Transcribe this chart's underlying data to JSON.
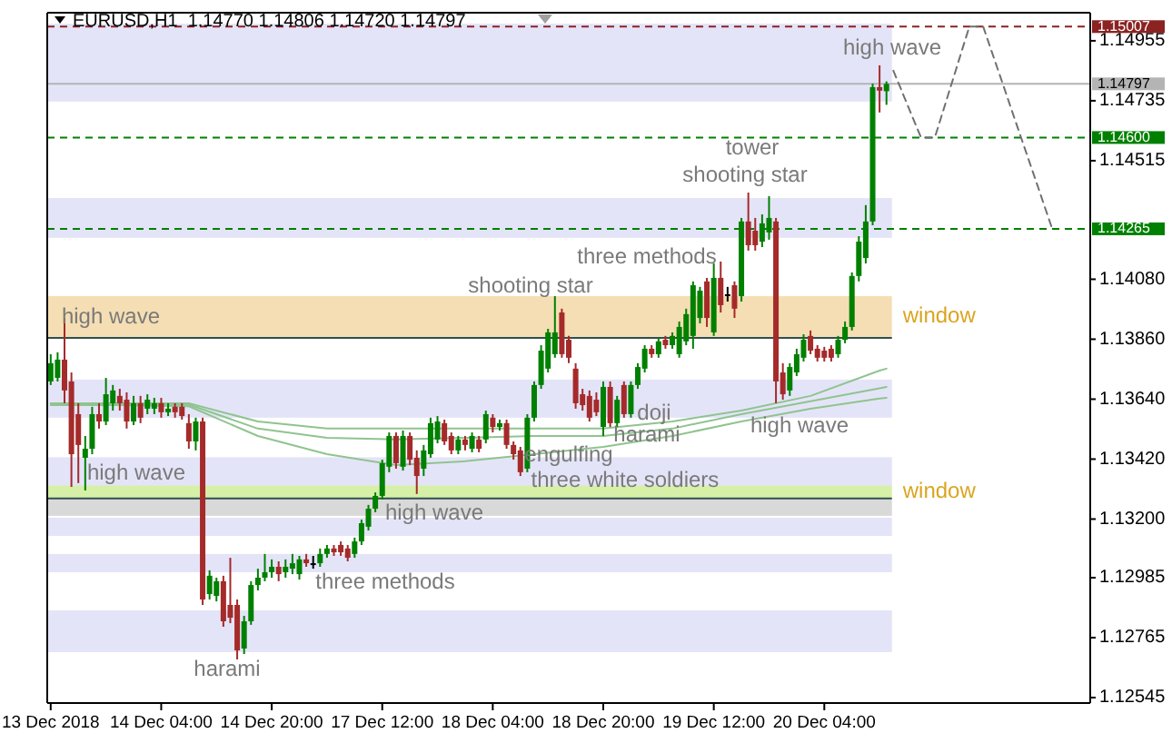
{
  "chart_data": {
    "type": "candlestick",
    "title": "EURUSD,H1  1.14770 1.14806 1.14720 1.14797",
    "categories": [
      "13 Dec 2018",
      null,
      null,
      null,
      null,
      null,
      null,
      null,
      null,
      null,
      null,
      null,
      null,
      null,
      null,
      null,
      "14 Dec 04:00",
      null,
      null,
      null,
      null,
      null,
      null,
      null,
      null,
      null,
      null,
      null,
      null,
      null,
      null,
      null,
      "14 Dec 20:00",
      null,
      null,
      null,
      null,
      null,
      null,
      null,
      null,
      null,
      null,
      null,
      null,
      null,
      null,
      null,
      "17 Dec 12:00",
      null,
      null,
      null,
      null,
      null,
      null,
      null,
      null,
      null,
      null,
      null,
      null,
      null,
      null,
      null,
      "18 Dec 04:00",
      null,
      null,
      null,
      null,
      null,
      null,
      null,
      null,
      null,
      null,
      null,
      null,
      null,
      null,
      null,
      "18 Dec 20:00",
      null,
      null,
      null,
      null,
      null,
      null,
      null,
      null,
      null,
      null,
      null,
      null,
      null,
      null,
      null,
      "19 Dec 12:00",
      null,
      null,
      null,
      null,
      null,
      null,
      null,
      null,
      null,
      null,
      null,
      null,
      null,
      null,
      null,
      "20 Dec 04:00",
      null,
      null,
      null,
      null,
      null,
      null,
      null,
      null,
      null,
      null,
      null,
      null,
      null,
      null,
      null,
      null,
      null,
      null,
      null,
      null,
      null,
      null,
      null,
      null,
      null,
      null,
      null,
      null,
      null,
      null,
      null,
      null,
      null,
      null,
      null,
      null,
      null,
      null
    ],
    "ohlc": [
      [
        1.13705,
        1.13805,
        1.13692,
        1.13772
      ],
      [
        1.13718,
        1.13812,
        1.13705,
        1.13785
      ],
      [
        1.13785,
        1.13938,
        1.13625,
        1.13672
      ],
      [
        1.13705,
        1.13738,
        1.13318,
        1.13438
      ],
      [
        1.13585,
        1.13625,
        1.13332,
        1.13472
      ],
      [
        1.13425,
        1.13505,
        1.13305,
        1.13458
      ],
      [
        1.13458,
        1.13612,
        1.13438,
        1.13585
      ],
      [
        1.13585,
        1.13625,
        1.13532,
        1.13558
      ],
      [
        1.13558,
        1.13718,
        1.13545,
        1.13658
      ],
      [
        1.13625,
        1.13692,
        1.13598,
        1.13672
      ],
      [
        1.13652,
        1.13678,
        1.13598,
        1.13625
      ],
      [
        1.13638,
        1.13665,
        1.13532,
        1.13558
      ],
      [
        1.13558,
        1.13652,
        1.13545,
        1.13625
      ],
      [
        1.13625,
        1.13652,
        1.13552,
        1.13572
      ],
      [
        1.13605,
        1.13658,
        1.13585,
        1.13638
      ],
      [
        1.13605,
        1.13645,
        1.13585,
        1.13625
      ],
      [
        1.13625,
        1.13645,
        1.13572,
        1.13592
      ],
      [
        1.13592,
        1.13625,
        1.13578,
        1.13605
      ],
      [
        1.13612,
        1.13625,
        1.13572,
        1.13592
      ],
      [
        1.13612,
        1.13625,
        1.13565,
        1.13578
      ],
      [
        1.13552,
        1.13585,
        1.13458,
        1.13485
      ],
      [
        1.13485,
        1.13572,
        1.13452,
        1.13558
      ],
      [
        1.13558,
        1.13572,
        1.12885,
        1.12905
      ],
      [
        1.12925,
        1.13012,
        1.12905,
        1.12992
      ],
      [
        1.12918,
        1.12985,
        1.12898,
        1.12972
      ],
      [
        1.12972,
        1.12992,
        1.12805,
        1.12825
      ],
      [
        1.12885,
        1.13058,
        1.12818,
        1.12838
      ],
      [
        1.12885,
        1.12905,
        1.12685,
        1.12718
      ],
      [
        1.12725,
        1.12845,
        1.12705,
        1.12825
      ],
      [
        1.12825,
        1.12972,
        1.12812,
        1.12958
      ],
      [
        1.12958,
        1.13018,
        1.12938,
        1.12985
      ],
      [
        1.12985,
        1.13072,
        1.12972,
        1.13005
      ],
      [
        1.13005,
        1.13052,
        1.12985,
        1.13025
      ],
      [
        1.13025,
        1.13045,
        1.12972,
        1.12998
      ],
      [
        1.13005,
        1.13052,
        1.12985,
        1.13025
      ],
      [
        1.13018,
        1.13072,
        1.12998,
        1.13038
      ],
      [
        1.12998,
        1.13065,
        1.12978,
        1.13052
      ],
      [
        1.13052,
        1.13072,
        1.13025,
        1.13038
      ],
      [
        1.13038,
        1.13065,
        1.13018,
        1.13038
      ],
      [
        1.13038,
        1.13092,
        1.13025,
        1.13072
      ],
      [
        1.13072,
        1.13105,
        1.13058,
        1.13092
      ],
      [
        1.13092,
        1.13105,
        1.13065,
        1.13078
      ],
      [
        1.13105,
        1.13118,
        1.13065,
        1.13078
      ],
      [
        1.13092,
        1.13105,
        1.13045,
        1.13058
      ],
      [
        1.13072,
        1.13132,
        1.13058,
        1.13118
      ],
      [
        1.13118,
        1.13198,
        1.13105,
        1.13185
      ],
      [
        1.13172,
        1.13252,
        1.13158,
        1.13238
      ],
      [
        1.13238,
        1.13298,
        1.13225,
        1.13285
      ],
      [
        1.13285,
        1.13418,
        1.13272,
        1.13405
      ],
      [
        1.13392,
        1.13518,
        1.13372,
        1.13505
      ],
      [
        1.13505,
        1.13518,
        1.13385,
        1.13405
      ],
      [
        1.13392,
        1.13525,
        1.13378,
        1.13505
      ],
      [
        1.13505,
        1.13518,
        1.13398,
        1.13418
      ],
      [
        1.13425,
        1.13452,
        1.13292,
        1.13358
      ],
      [
        1.13385,
        1.13472,
        1.13358,
        1.13452
      ],
      [
        1.13438,
        1.13572,
        1.13425,
        1.13552
      ],
      [
        1.13492,
        1.13578,
        1.13478,
        1.13558
      ],
      [
        1.13552,
        1.13565,
        1.13472,
        1.13485
      ],
      [
        1.13505,
        1.13518,
        1.13438,
        1.13452
      ],
      [
        1.13452,
        1.13505,
        1.13438,
        1.13492
      ],
      [
        1.13492,
        1.13505,
        1.13452,
        1.13472
      ],
      [
        1.13458,
        1.13518,
        1.13445,
        1.13505
      ],
      [
        1.13492,
        1.13505,
        1.13445,
        1.13458
      ],
      [
        1.13492,
        1.13598,
        1.13478,
        1.13585
      ],
      [
        1.13572,
        1.13585,
        1.13518,
        1.13538
      ],
      [
        1.13538,
        1.13565,
        1.13525,
        1.13552
      ],
      [
        1.13552,
        1.13565,
        1.13458,
        1.13472
      ],
      [
        1.13472,
        1.13485,
        1.13418,
        1.13438
      ],
      [
        1.13452,
        1.13465,
        1.13358,
        1.13372
      ],
      [
        1.13385,
        1.13585,
        1.13372,
        1.13572
      ],
      [
        1.13572,
        1.13705,
        1.13558,
        1.13692
      ],
      [
        1.13692,
        1.13838,
        1.13678,
        1.13818
      ],
      [
        1.13752,
        1.13898,
        1.13738,
        1.13885
      ],
      [
        1.13805,
        1.14018,
        1.13792,
        1.13885
      ],
      [
        1.13958,
        1.13972,
        1.13792,
        1.13805
      ],
      [
        1.13858,
        1.13872,
        1.13772,
        1.13792
      ],
      [
        1.13752,
        1.13772,
        1.13605,
        1.13625
      ],
      [
        1.13658,
        1.13678,
        1.13598,
        1.13618
      ],
      [
        1.13652,
        1.13672,
        1.13558,
        1.13572
      ],
      [
        1.13638,
        1.13665,
        1.13578,
        1.13592
      ],
      [
        1.13538,
        1.13705,
        1.13505,
        1.13685
      ],
      [
        1.13685,
        1.13705,
        1.13538,
        1.13552
      ],
      [
        1.13552,
        1.13652,
        1.13538,
        1.13638
      ],
      [
        1.13692,
        1.13705,
        1.13572,
        1.13585
      ],
      [
        1.13585,
        1.13705,
        1.13572,
        1.13692
      ],
      [
        1.13692,
        1.13772,
        1.13678,
        1.13758
      ],
      [
        1.13752,
        1.13838,
        1.13738,
        1.13825
      ],
      [
        1.13825,
        1.13838,
        1.13792,
        1.13805
      ],
      [
        1.13805,
        1.13865,
        1.13792,
        1.13852
      ],
      [
        1.13858,
        1.13872,
        1.13825,
        1.13838
      ],
      [
        1.13838,
        1.13885,
        1.13825,
        1.13872
      ],
      [
        1.13805,
        1.13925,
        1.13792,
        1.13905
      ],
      [
        1.13852,
        1.13972,
        1.13838,
        1.13952
      ],
      [
        1.13872,
        1.14072,
        1.13825,
        1.14058
      ],
      [
        1.13938,
        1.14052,
        1.13918,
        1.14038
      ],
      [
        1.14072,
        1.14085,
        1.13905,
        1.13938
      ],
      [
        1.13885,
        1.14138,
        1.13872,
        1.14085
      ],
      [
        1.14085,
        1.14145,
        1.13958,
        1.13985
      ],
      [
        1.14025,
        1.14052,
        1.13998,
        1.14025
      ],
      [
        1.14058,
        1.14072,
        1.13938,
        1.13972
      ],
      [
        1.14018,
        1.14305,
        1.13998,
        1.14292
      ],
      [
        1.14292,
        1.14398,
        1.14185,
        1.14205
      ],
      [
        1.14258,
        1.14305,
        1.14185,
        1.14205
      ],
      [
        1.14218,
        1.14318,
        1.14198,
        1.14285
      ],
      [
        1.14252,
        1.14385,
        1.14225,
        1.14305
      ],
      [
        1.14292,
        1.14305,
        1.13625,
        1.13705
      ],
      [
        1.13738,
        1.13772,
        1.13638,
        1.13658
      ],
      [
        1.13672,
        1.13772,
        1.13652,
        1.13758
      ],
      [
        1.13738,
        1.13825,
        1.13725,
        1.13805
      ],
      [
        1.13792,
        1.13878,
        1.13778,
        1.13858
      ],
      [
        1.13872,
        1.13892,
        1.13805,
        1.13818
      ],
      [
        1.13825,
        1.13838,
        1.13778,
        1.13792
      ],
      [
        1.13818,
        1.13832,
        1.13778,
        1.13792
      ],
      [
        1.13825,
        1.13838,
        1.13778,
        1.13792
      ],
      [
        1.13805,
        1.13872,
        1.13792,
        1.13858
      ],
      [
        1.13858,
        1.13925,
        1.13845,
        1.13905
      ],
      [
        1.13905,
        1.14105,
        1.13892,
        1.14092
      ],
      [
        1.14092,
        1.14238,
        1.14072,
        1.14218
      ],
      [
        1.14158,
        1.14352,
        1.14138,
        1.14292
      ],
      [
        1.14292,
        1.14798,
        1.14278,
        1.14785
      ],
      [
        1.14785,
        1.14865,
        1.14692,
        1.14772
      ],
      [
        1.1477,
        1.14806,
        1.1472,
        1.14797
      ],
      null,
      null,
      null,
      null,
      null,
      null,
      null,
      null,
      null,
      null,
      null,
      null,
      null,
      null,
      null,
      null,
      null,
      null,
      null,
      null,
      null,
      null,
      null,
      null,
      null,
      null,
      null,
      null,
      null
    ],
    "series": [
      {
        "type": "line",
        "color": "#8fc48f",
        "values": [
          1.13625,
          null,
          null,
          null,
          null,
          null,
          null,
          null,
          null,
          null,
          1.13625,
          null,
          null,
          null,
          null,
          null,
          null,
          null,
          null,
          null,
          1.13625,
          null,
          null,
          null,
          null,
          null,
          null,
          null,
          null,
          null,
          1.13558,
          null,
          null,
          null,
          null,
          null,
          null,
          null,
          null,
          null,
          1.13532,
          null,
          null,
          null,
          null,
          null,
          null,
          null,
          null,
          null,
          1.13532,
          null,
          null,
          null,
          null,
          null,
          null,
          null,
          null,
          null,
          1.13532,
          null,
          null,
          null,
          null,
          null,
          null,
          null,
          null,
          null,
          1.13532,
          null,
          null,
          null,
          null,
          null,
          null,
          null,
          null,
          null,
          1.13532,
          null,
          null,
          null,
          null,
          null,
          null,
          null,
          null,
          null,
          1.13558,
          null,
          null,
          null,
          null,
          null,
          null,
          null,
          null,
          null,
          1.13598,
          null,
          null,
          null,
          null,
          null,
          null,
          null,
          null,
          null,
          1.13652,
          null,
          null,
          null,
          null,
          null,
          null,
          null,
          null,
          null,
          1.13745,
          1.13752,
          null,
          null,
          null,
          null,
          null,
          null,
          null,
          null,
          null,
          null,
          null,
          null,
          null,
          null,
          null,
          null,
          null,
          null,
          null,
          null,
          null,
          null,
          null,
          null,
          null,
          null,
          null,
          null,
          null
        ]
      },
      {
        "type": "line",
        "color": "#8fc48f",
        "values": [
          1.13625,
          null,
          null,
          null,
          null,
          null,
          null,
          null,
          null,
          null,
          1.13625,
          null,
          null,
          null,
          null,
          null,
          null,
          null,
          null,
          null,
          1.1362,
          null,
          null,
          null,
          null,
          null,
          null,
          null,
          null,
          null,
          1.13532,
          null,
          null,
          null,
          null,
          null,
          null,
          null,
          null,
          null,
          1.13498,
          null,
          null,
          null,
          null,
          null,
          null,
          null,
          null,
          null,
          1.13492,
          null,
          null,
          null,
          null,
          null,
          null,
          null,
          null,
          null,
          1.13498,
          null,
          null,
          null,
          null,
          null,
          null,
          null,
          null,
          null,
          1.13505,
          null,
          null,
          null,
          null,
          null,
          null,
          null,
          null,
          null,
          1.13505,
          null,
          null,
          null,
          null,
          null,
          null,
          null,
          null,
          null,
          1.13532,
          null,
          null,
          null,
          null,
          null,
          null,
          null,
          null,
          null,
          1.13585,
          null,
          null,
          null,
          null,
          null,
          null,
          null,
          null,
          null,
          1.13632,
          null,
          null,
          null,
          null,
          null,
          null,
          null,
          null,
          null,
          1.1368,
          1.13685,
          null,
          null,
          null,
          null,
          null,
          null,
          null,
          null,
          null,
          null,
          null,
          null,
          null,
          null,
          null,
          null,
          null,
          null,
          null,
          null,
          null,
          null,
          null,
          null,
          null,
          null,
          null,
          null,
          null
        ]
      },
      {
        "type": "line",
        "color": "#8fc48f",
        "values": [
          1.13618,
          null,
          null,
          null,
          null,
          null,
          null,
          null,
          null,
          null,
          1.13618,
          null,
          null,
          null,
          null,
          null,
          null,
          null,
          null,
          null,
          1.13614,
          null,
          null,
          null,
          null,
          null,
          null,
          null,
          null,
          null,
          1.13505,
          null,
          null,
          null,
          null,
          null,
          null,
          null,
          null,
          null,
          1.13438,
          null,
          null,
          null,
          null,
          null,
          null,
          null,
          null,
          null,
          1.13398,
          null,
          null,
          null,
          null,
          null,
          null,
          null,
          null,
          null,
          1.13412,
          null,
          null,
          null,
          null,
          null,
          null,
          null,
          null,
          null,
          1.13438,
          null,
          null,
          null,
          null,
          null,
          null,
          null,
          null,
          null,
          1.13465,
          null,
          null,
          null,
          null,
          null,
          null,
          null,
          null,
          null,
          1.13505,
          null,
          null,
          null,
          null,
          null,
          null,
          null,
          null,
          null,
          1.13558,
          null,
          null,
          null,
          null,
          null,
          null,
          null,
          null,
          null,
          1.13605,
          null,
          null,
          null,
          null,
          null,
          null,
          null,
          null,
          null,
          1.13642,
          1.13645,
          null,
          null,
          null,
          null,
          null,
          null,
          null,
          null,
          null,
          null,
          null,
          null,
          null,
          null,
          null,
          null,
          null,
          null,
          null,
          null,
          null,
          null,
          null,
          null,
          null,
          null,
          null,
          null,
          null
        ]
      },
      {
        "type": "line",
        "color": "#707070",
        "line_style": "dashed",
        "values": [
          null,
          null,
          null,
          null,
          null,
          null,
          null,
          null,
          null,
          null,
          null,
          null,
          null,
          null,
          null,
          null,
          null,
          null,
          null,
          null,
          null,
          null,
          null,
          null,
          null,
          null,
          null,
          null,
          null,
          null,
          null,
          null,
          null,
          null,
          null,
          null,
          null,
          null,
          null,
          null,
          null,
          null,
          null,
          null,
          null,
          null,
          null,
          null,
          null,
          null,
          null,
          null,
          null,
          null,
          null,
          null,
          null,
          null,
          null,
          null,
          null,
          null,
          null,
          null,
          null,
          null,
          null,
          null,
          null,
          null,
          null,
          null,
          null,
          null,
          null,
          null,
          null,
          null,
          null,
          null,
          null,
          null,
          null,
          null,
          null,
          null,
          null,
          null,
          null,
          null,
          null,
          null,
          null,
          null,
          null,
          null,
          null,
          null,
          null,
          null,
          null,
          null,
          null,
          null,
          null,
          null,
          null,
          null,
          null,
          null,
          null,
          null,
          null,
          null,
          null,
          null,
          null,
          null,
          null,
          null,
          null,
          null,
          1.14845,
          1.14784,
          1.14722,
          1.14661,
          1.146,
          1.146,
          1.146,
          1.14681,
          1.14763,
          1.14844,
          1.14926,
          1.15007,
          1.15007,
          1.15007,
          1.14933,
          1.14859,
          1.14785,
          1.1471,
          1.14636,
          1.14562,
          1.14488,
          1.14414,
          1.14339,
          1.14265,
          null,
          null,
          null,
          null,
          null
        ]
      }
    ],
    "ylim": [
      1.12525,
      1.15058
    ],
    "yticks": [
      {
        "value": 1.12545,
        "label": "1.12545"
      },
      {
        "value": 1.12765,
        "label": "1.12765"
      },
      {
        "value": 1.12985,
        "label": "1.12985"
      },
      {
        "value": 1.132,
        "label": "1.13200"
      },
      {
        "value": 1.1342,
        "label": "1.13420"
      },
      {
        "value": 1.1364,
        "label": "1.13640"
      },
      {
        "value": 1.1386,
        "label": "1.13860"
      },
      {
        "value": 1.1408,
        "label": "1.14080"
      },
      {
        "value": 1.14515,
        "label": "1.14515"
      },
      {
        "value": 1.14735,
        "label": "1.14735"
      },
      {
        "value": 1.14955,
        "label": "1.14955"
      }
    ],
    "bands": [
      {
        "axis": "y",
        "from": 1.14732,
        "to": 1.15018,
        "color": "#e4e4f8"
      },
      {
        "axis": "y",
        "from": 1.14232,
        "to": 1.14378,
        "color": "#e4e4f8"
      },
      {
        "axis": "y",
        "from": 1.13865,
        "to": 1.14018,
        "color": "#f5deb3",
        "label": "window"
      },
      {
        "axis": "y",
        "from": 1.13572,
        "to": 1.13712,
        "color": "#e4e4f8"
      },
      {
        "axis": "y",
        "from": 1.13318,
        "to": 1.13427,
        "color": "#e4e4f8"
      },
      {
        "axis": "y",
        "from": 1.13276,
        "to": 1.13323,
        "color": "#d6f0a8",
        "label": "window"
      },
      {
        "axis": "y",
        "from": 1.13212,
        "to": 1.13276,
        "color": "#d9d9d9"
      },
      {
        "axis": "y",
        "from": 1.13138,
        "to": 1.13205,
        "color": "#e4e4f8"
      },
      {
        "axis": "y",
        "from": 1.13005,
        "to": 1.13072,
        "color": "#e4e4f8"
      },
      {
        "axis": "y",
        "from": 1.12712,
        "to": 1.12865,
        "color": "#e4e4f8"
      }
    ],
    "ref_lines": [
      {
        "axis": "y",
        "value": 1.15007,
        "label": "1.15007",
        "color": "#8b2323",
        "line_style": "dashed"
      },
      {
        "axis": "y",
        "value": 1.14797,
        "label": "1.14797",
        "color": "#b4b4b4",
        "line_style": "solid"
      },
      {
        "axis": "y",
        "value": 1.146,
        "label": "1.14600",
        "color": "#008000",
        "line_style": "dashed"
      },
      {
        "axis": "y",
        "value": 1.14265,
        "label": "1.14265",
        "color": "#008000",
        "line_style": "dashed"
      },
      {
        "axis": "y",
        "value": 1.13865,
        "color": "#2f4f4f",
        "line_style": "solid"
      },
      {
        "axis": "y",
        "value": 1.13276,
        "color": "#2f4f4f",
        "line_style": "solid"
      }
    ],
    "annotations": [
      "high wave",
      "high wave",
      "harami",
      "three methods",
      {
        "text": "high wave",
        "y": 1.13218
      },
      "shooting star",
      "three methods",
      "tower",
      "shooting star",
      {
        "text": "engulfing",
        "y": 1.13432
      },
      {
        "text": "three white soldiers",
        "y": 1.13338
      },
      "doji",
      {
        "text": "harami",
        "y": 1.13505
      },
      "high wave",
      "high wave"
    ]
  }
}
